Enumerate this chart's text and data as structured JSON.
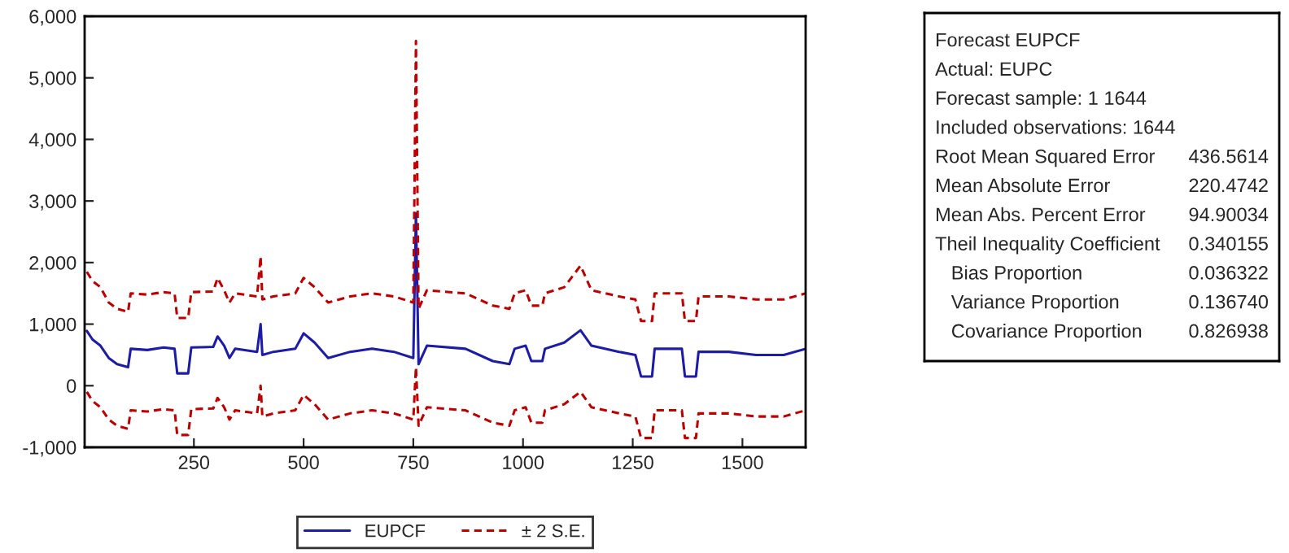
{
  "chart_data": [
    {
      "type": "line",
      "xlim": [
        1,
        1644
      ],
      "ylim": [
        -1000,
        6000
      ],
      "xticks": [
        250,
        500,
        750,
        1000,
        1250,
        1500
      ],
      "yticks": [
        {
          "value": -1000,
          "label": "-1,000"
        },
        0,
        {
          "value": 1000,
          "label": "1,000"
        },
        {
          "value": 2000,
          "label": "2,000"
        },
        {
          "value": 3000,
          "label": "3,000"
        },
        {
          "value": 4000,
          "label": "4,000"
        },
        {
          "value": 5000,
          "label": "5,000"
        },
        {
          "value": 6000,
          "label": "6,000"
        }
      ],
      "grid": false,
      "legend": "bottom",
      "x": [
        6,
        19,
        37,
        56,
        75,
        100,
        106,
        144,
        181,
        206,
        212,
        237,
        244,
        294,
        304,
        319,
        331,
        344,
        394,
        402,
        406,
        431,
        481,
        500,
        525,
        556,
        606,
        656,
        706,
        750,
        756,
        762,
        781,
        869,
        931,
        969,
        981,
        1006,
        1019,
        1044,
        1050,
        1094,
        1131,
        1156,
        1219,
        1256,
        1269,
        1294,
        1300,
        1362,
        1369,
        1394,
        1400,
        1469,
        1531,
        1594,
        1644
      ],
      "series": [
        {
          "name": "EUPCF",
          "color": "#1c1ca8",
          "line_style": "solid",
          "values": [
            890,
            750,
            650,
            450,
            350,
            300,
            600,
            580,
            620,
            600,
            200,
            200,
            620,
            630,
            800,
            650,
            450,
            600,
            550,
            1000,
            500,
            550,
            600,
            850,
            700,
            450,
            550,
            600,
            550,
            450,
            2800,
            350,
            650,
            600,
            400,
            350,
            600,
            650,
            400,
            400,
            600,
            700,
            900,
            650,
            550,
            500,
            150,
            150,
            600,
            600,
            150,
            150,
            550,
            550,
            500,
            500,
            600
          ]
        },
        {
          "name": "± 2 S.E.",
          "color": "#c00000",
          "line_style": "dashed",
          "values": [
            1850,
            1700,
            1600,
            1350,
            1250,
            1200,
            1500,
            1480,
            1520,
            1500,
            1100,
            1100,
            1520,
            1530,
            1750,
            1550,
            1350,
            1500,
            1450,
            2100,
            1400,
            1450,
            1500,
            1750,
            1600,
            1350,
            1450,
            1500,
            1450,
            1350,
            5600,
            1250,
            1550,
            1500,
            1300,
            1250,
            1500,
            1550,
            1300,
            1300,
            1500,
            1600,
            1950,
            1550,
            1450,
            1400,
            1050,
            1050,
            1500,
            1500,
            1050,
            1050,
            1450,
            1450,
            1400,
            1400,
            1500
          ]
        },
        {
          "color": "#c00000",
          "line_style": "dashed",
          "values": [
            -100,
            -250,
            -350,
            -550,
            -650,
            -700,
            -400,
            -420,
            -380,
            -400,
            -800,
            -800,
            -380,
            -370,
            -200,
            -350,
            -550,
            -400,
            -450,
            0,
            -500,
            -450,
            -400,
            -150,
            -300,
            -550,
            -450,
            -400,
            -450,
            -550,
            300,
            -650,
            -350,
            -400,
            -600,
            -650,
            -400,
            -350,
            -600,
            -600,
            -400,
            -300,
            -100,
            -350,
            -450,
            -500,
            -850,
            -850,
            -400,
            -400,
            -850,
            -850,
            -450,
            -450,
            -500,
            -500,
            -400
          ]
        }
      ]
    },
    {
      "type": "other",
      "annotations": [
        "Forecast EUPCF",
        "Actual: EUPC",
        "Forecast sample: 1 1644",
        "Included observations: 1644"
      ],
      "categories": [
        "Root Mean Squared Error",
        "Mean Absolute Error",
        "Mean Abs. Percent Error",
        "Theil Inequality Coefficient",
        "   Bias Proportion",
        "   Variance Proportion",
        "   Covariance Proportion"
      ],
      "value_labels": [
        "436.5614",
        "220.4742",
        "94.90034",
        "0.340155",
        "0.036322",
        "0.136740",
        "0.826938"
      ]
    }
  ]
}
